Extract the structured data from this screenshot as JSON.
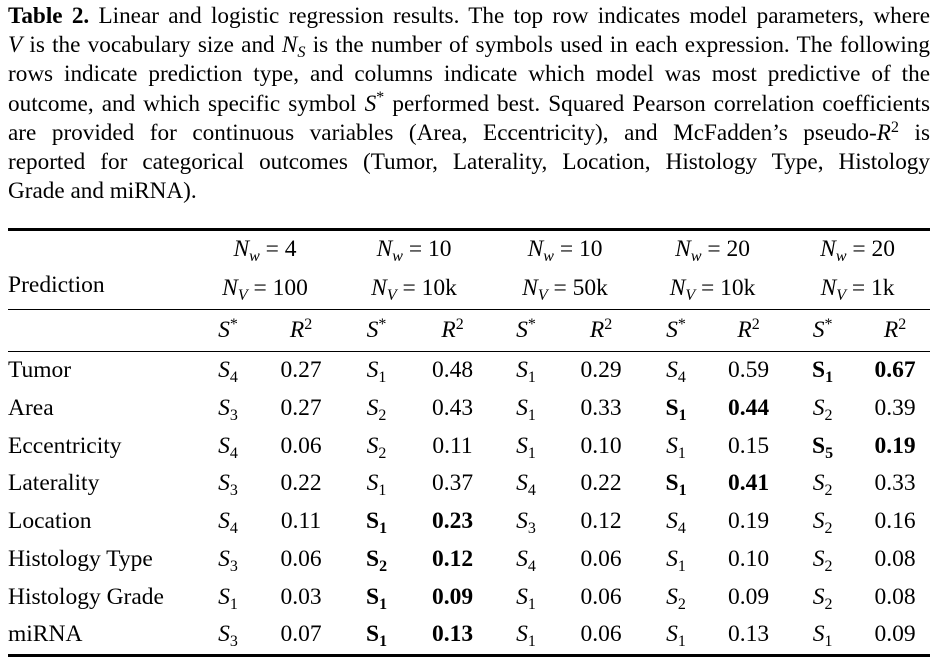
{
  "caption": {
    "lines": [
      [
        {
          "bold": "Table 2."
        },
        {
          "text": " Linear and logistic regression results. The top row indicates model parameters, where"
        }
      ],
      [
        {
          "italic": "V"
        },
        {
          "text": " is the vocabulary size and "
        },
        {
          "italic": "N"
        },
        {
          "sub": "S"
        },
        {
          "text": " is the number of symbols used in each expression. The following"
        }
      ],
      [
        {
          "text": "rows indicate prediction type, and columns indicate which model was most predictive of the"
        }
      ],
      [
        {
          "text": "outcome, and which specific symbol "
        },
        {
          "italic": "S"
        },
        {
          "sup": "*"
        },
        {
          "text": " performed best. Squared Pearson correlation coefficients"
        }
      ],
      [
        {
          "text": "are provided for continuous variables (Area, Eccentricity), and McFadden’s pseudo-"
        },
        {
          "italic": "R"
        },
        {
          "sup": "2"
        },
        {
          "text": " is"
        }
      ],
      [
        {
          "text": "reported for categorical outcomes (Tumor, Laterality, Location, Histology Type, Histology"
        }
      ],
      [
        {
          "text": "Grade and miRNA)."
        }
      ]
    ]
  },
  "table": {
    "prediction_label": "Prediction",
    "groups": [
      {
        "nw": {
          "base": "N",
          "sub": "w",
          "value": " = 4"
        },
        "nv": {
          "base": "N",
          "sub": "V",
          "value": " = 100"
        }
      },
      {
        "nw": {
          "base": "N",
          "sub": "w",
          "value": " = 10"
        },
        "nv": {
          "base": "N",
          "sub": "V",
          "value": " = 10k"
        }
      },
      {
        "nw": {
          "base": "N",
          "sub": "w",
          "value": " = 10"
        },
        "nv": {
          "base": "N",
          "sub": "V",
          "value": " = 50k"
        }
      },
      {
        "nw": {
          "base": "N",
          "sub": "w",
          "value": " = 20"
        },
        "nv": {
          "base": "N",
          "sub": "V",
          "value": " = 10k"
        }
      },
      {
        "nw": {
          "base": "N",
          "sub": "w",
          "value": " = 20"
        },
        "nv": {
          "base": "N",
          "sub": "V",
          "value": " = 1k"
        }
      }
    ],
    "subheader": {
      "s_base": "S",
      "s_sup": "*",
      "r_base": "R",
      "r_sup": "2"
    },
    "rows": [
      {
        "label": "Tumor",
        "cells": [
          {
            "symbol": "S",
            "index": "4",
            "r2": "0.27",
            "best": false
          },
          {
            "symbol": "S",
            "index": "1",
            "r2": "0.48",
            "best": false
          },
          {
            "symbol": "S",
            "index": "1",
            "r2": "0.29",
            "best": false
          },
          {
            "symbol": "S",
            "index": "4",
            "r2": "0.59",
            "best": false
          },
          {
            "symbol": "S",
            "index": "1",
            "r2": "0.67",
            "best": true
          }
        ]
      },
      {
        "label": "Area",
        "cells": [
          {
            "symbol": "S",
            "index": "3",
            "r2": "0.27",
            "best": false
          },
          {
            "symbol": "S",
            "index": "2",
            "r2": "0.43",
            "best": false
          },
          {
            "symbol": "S",
            "index": "1",
            "r2": "0.33",
            "best": false
          },
          {
            "symbol": "S",
            "index": "1",
            "r2": "0.44",
            "best": true
          },
          {
            "symbol": "S",
            "index": "2",
            "r2": "0.39",
            "best": false
          }
        ]
      },
      {
        "label": "Eccentricity",
        "cells": [
          {
            "symbol": "S",
            "index": "4",
            "r2": "0.06",
            "best": false
          },
          {
            "symbol": "S",
            "index": "2",
            "r2": "0.11",
            "best": false
          },
          {
            "symbol": "S",
            "index": "1",
            "r2": "0.10",
            "best": false
          },
          {
            "symbol": "S",
            "index": "1",
            "r2": "0.15",
            "best": false
          },
          {
            "symbol": "S",
            "index": "5",
            "r2": "0.19",
            "best": true
          }
        ]
      },
      {
        "label": "Laterality",
        "cells": [
          {
            "symbol": "S",
            "index": "3",
            "r2": "0.22",
            "best": false
          },
          {
            "symbol": "S",
            "index": "1",
            "r2": "0.37",
            "best": false
          },
          {
            "symbol": "S",
            "index": "4",
            "r2": "0.22",
            "best": false
          },
          {
            "symbol": "S",
            "index": "1",
            "r2": "0.41",
            "best": true
          },
          {
            "symbol": "S",
            "index": "2",
            "r2": "0.33",
            "best": false
          }
        ]
      },
      {
        "label": "Location",
        "cells": [
          {
            "symbol": "S",
            "index": "4",
            "r2": "0.11",
            "best": false
          },
          {
            "symbol": "S",
            "index": "1",
            "r2": "0.23",
            "best": true
          },
          {
            "symbol": "S",
            "index": "3",
            "r2": "0.12",
            "best": false
          },
          {
            "symbol": "S",
            "index": "4",
            "r2": "0.19",
            "best": false
          },
          {
            "symbol": "S",
            "index": "2",
            "r2": "0.16",
            "best": false
          }
        ]
      },
      {
        "label": "Histology Type",
        "cells": [
          {
            "symbol": "S",
            "index": "3",
            "r2": "0.06",
            "best": false
          },
          {
            "symbol": "S",
            "index": "2",
            "r2": "0.12",
            "best": true
          },
          {
            "symbol": "S",
            "index": "4",
            "r2": "0.06",
            "best": false
          },
          {
            "symbol": "S",
            "index": "1",
            "r2": "0.10",
            "best": false
          },
          {
            "symbol": "S",
            "index": "2",
            "r2": "0.08",
            "best": false
          }
        ]
      },
      {
        "label": "Histology Grade",
        "cells": [
          {
            "symbol": "S",
            "index": "1",
            "r2": "0.03",
            "best": false
          },
          {
            "symbol": "S",
            "index": "1",
            "r2": "0.09",
            "best": true
          },
          {
            "symbol": "S",
            "index": "1",
            "r2": "0.06",
            "best": false
          },
          {
            "symbol": "S",
            "index": "2",
            "r2": "0.09",
            "best": false
          },
          {
            "symbol": "S",
            "index": "2",
            "r2": "0.08",
            "best": false
          }
        ]
      },
      {
        "label": "miRNA",
        "cells": [
          {
            "symbol": "S",
            "index": "3",
            "r2": "0.07",
            "best": false
          },
          {
            "symbol": "S",
            "index": "1",
            "r2": "0.13",
            "best": true
          },
          {
            "symbol": "S",
            "index": "1",
            "r2": "0.06",
            "best": false
          },
          {
            "symbol": "S",
            "index": "1",
            "r2": "0.13",
            "best": false
          },
          {
            "symbol": "S",
            "index": "1",
            "r2": "0.09",
            "best": false
          }
        ]
      }
    ]
  }
}
